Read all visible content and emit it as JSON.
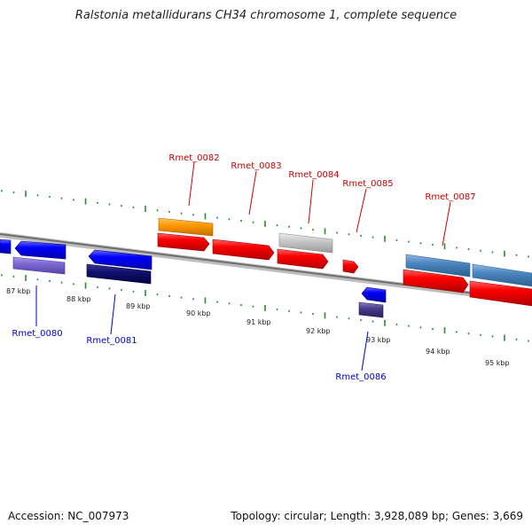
{
  "title": "Ralstonia metallidurans CH34 chromosome 1, complete sequence",
  "footer": {
    "accession": "Accession: NC_007973",
    "summary": "Topology: circular; Length: 3,928,089 bp; Genes: 3,669"
  },
  "colors": {
    "backbone": "#8a8a8a",
    "tick": "#2e8b2e",
    "forward_label": "#cc0000",
    "reverse_label": "#0000cc"
  },
  "tick_labels": [
    "87 kbp",
    "88 kbp",
    "89 kbp",
    "90 kbp",
    "91 kbp",
    "92 kbp",
    "93 kbp",
    "94 kbp",
    "95 kbp"
  ],
  "gene_labels": [
    "Rmet_0080",
    "Rmet_0081",
    "Rmet_0082",
    "Rmet_0083",
    "Rmet_0084",
    "Rmet_0085",
    "Rmet_0086",
    "Rmet_0087"
  ]
}
